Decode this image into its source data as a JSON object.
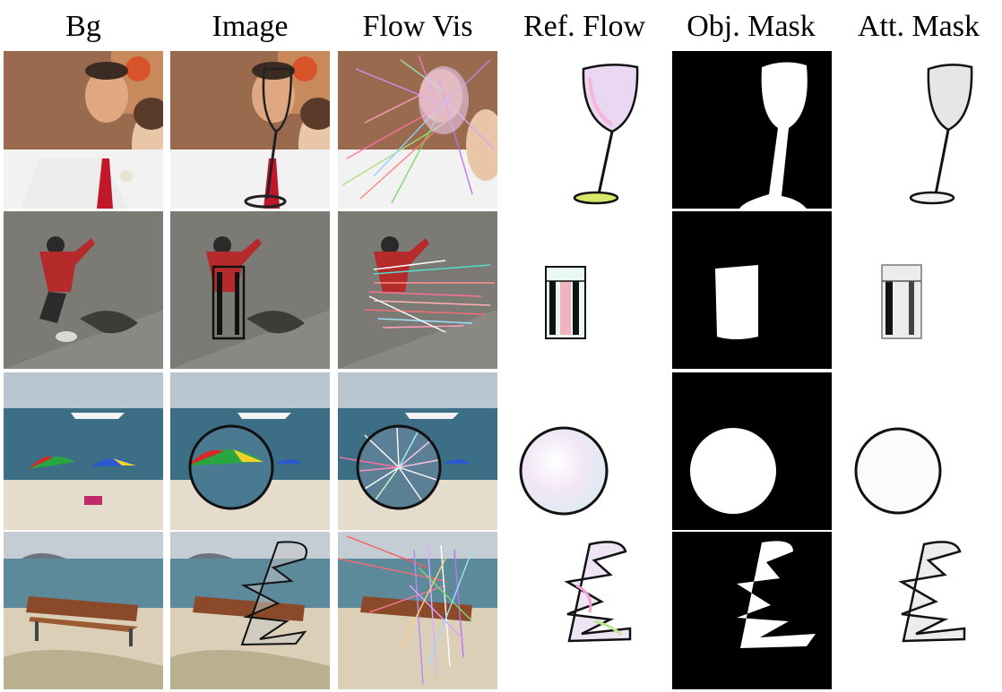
{
  "figure": {
    "headers": [
      "Bg",
      "Image",
      "Flow Vis",
      "Ref. Flow",
      "Obj. Mask",
      "Att. Mask"
    ],
    "rows": [
      {
        "scene": "wedding couple portrait",
        "object": "wine glass"
      },
      {
        "scene": "skateboarder with shadow",
        "object": "drinking glass"
      },
      {
        "scene": "beach with umbrellas and boat",
        "object": "round lens"
      },
      {
        "scene": "bench on sandy beach",
        "object": "abstract glass sculpture"
      }
    ]
  },
  "colors": {
    "mask_bg": "#000000",
    "mask_fg": "#ffffff",
    "frame_edge": "#111111"
  }
}
